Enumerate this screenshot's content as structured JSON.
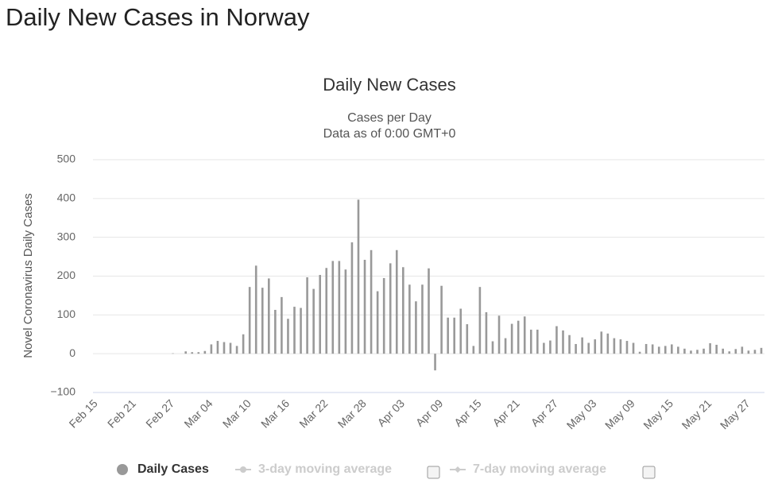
{
  "page_title": "Daily New Cases in Norway",
  "chart_data": {
    "type": "bar",
    "title": "Daily New Cases",
    "subtitle": [
      "Cases per Day",
      "Data as of 0:00 GMT+0"
    ],
    "y_label": "Novel Coronavirus Daily Cases",
    "categories": [
      "Feb 15",
      null,
      null,
      null,
      null,
      null,
      "Feb 21",
      null,
      null,
      null,
      null,
      null,
      "Feb 27",
      null,
      null,
      null,
      null,
      null,
      "Mar 04",
      null,
      null,
      null,
      null,
      null,
      "Mar 10",
      null,
      null,
      null,
      null,
      null,
      "Mar 16",
      null,
      null,
      null,
      null,
      null,
      "Mar 22",
      null,
      null,
      null,
      null,
      null,
      "Mar 28",
      null,
      null,
      null,
      null,
      null,
      "Apr 03",
      null,
      null,
      null,
      null,
      null,
      "Apr 09",
      null,
      null,
      null,
      null,
      null,
      "Apr 15",
      null,
      null,
      null,
      null,
      null,
      "Apr 21",
      null,
      null,
      null,
      null,
      null,
      "Apr 27",
      null,
      null,
      null,
      null,
      null,
      "May 03",
      null,
      null,
      null,
      null,
      null,
      "May 09",
      null,
      null,
      null,
      null,
      null,
      "May 15",
      null,
      null,
      null,
      null,
      null,
      "May 21",
      null,
      null,
      null,
      null,
      null,
      "May 27",
      null,
      null
    ],
    "series": [
      {
        "name": "Daily Cases",
        "color": "#999999",
        "values": [
          0,
          0,
          0,
          0,
          0,
          0,
          0,
          0,
          0,
          0,
          0,
          0,
          1,
          0,
          6,
          4,
          4,
          7,
          24,
          33,
          30,
          28,
          20,
          50,
          172,
          227,
          170,
          194,
          113,
          146,
          90,
          121,
          118,
          197,
          167,
          203,
          221,
          239,
          239,
          217,
          287,
          397,
          242,
          267,
          161,
          195,
          233,
          267,
          223,
          178,
          135,
          178,
          220,
          -43,
          175,
          93,
          93,
          116,
          76,
          20,
          172,
          107,
          32,
          98,
          40,
          77,
          85,
          96,
          62,
          62,
          28,
          34,
          71,
          60,
          48,
          25,
          42,
          28,
          37,
          57,
          52,
          40,
          37,
          33,
          28,
          5,
          25,
          24,
          18,
          20,
          24,
          18,
          13,
          8,
          10,
          13,
          27,
          23,
          13,
          6,
          12,
          18,
          8,
          10,
          15
        ]
      }
    ],
    "hidden_series": [
      {
        "name": "3-day moving average"
      },
      {
        "name": "7-day moving average"
      }
    ],
    "ylim": [
      -100,
      500
    ],
    "yticks": [
      {
        "value": -100,
        "label": "−100"
      },
      0,
      100,
      200,
      300,
      400,
      500
    ],
    "grid": true
  }
}
